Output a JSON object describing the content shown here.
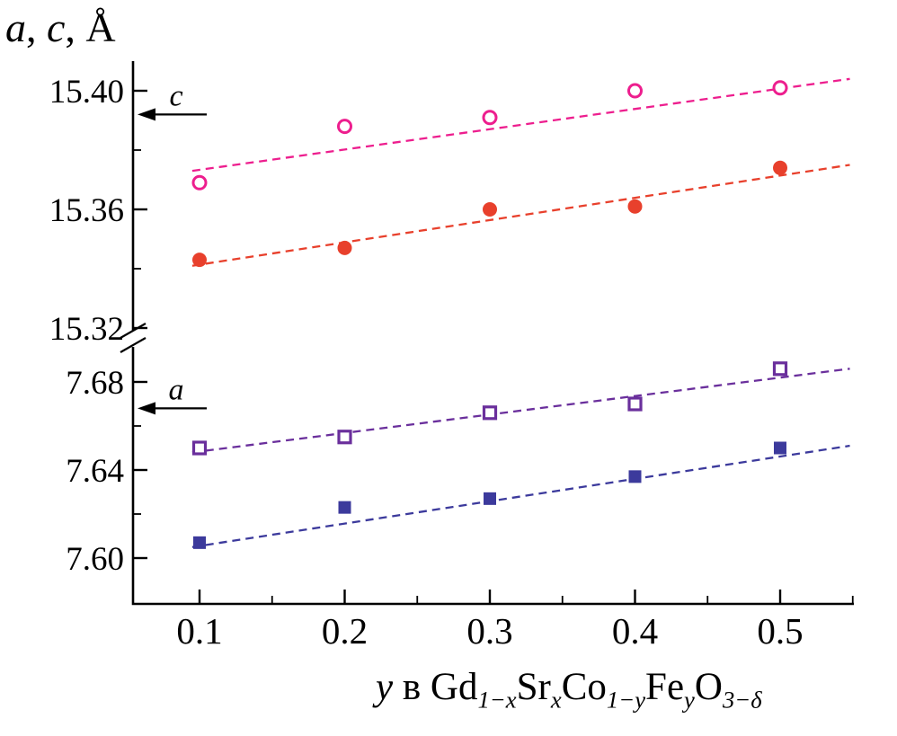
{
  "figure": {
    "title_parts": [
      {
        "t": "a",
        "i": true
      },
      {
        "t": ", "
      },
      {
        "t": "c",
        "i": true
      },
      {
        "t": ", Å"
      }
    ],
    "xlabel_parts": [
      {
        "t": "y",
        "i": true
      },
      {
        "t": " в "
      },
      {
        "t": "Gd"
      },
      {
        "t": "1−x",
        "sub": true,
        "i": true
      },
      {
        "t": "Sr"
      },
      {
        "t": "x",
        "sub": true,
        "i": true
      },
      {
        "t": "Co"
      },
      {
        "t": "1−y",
        "sub": true,
        "i": true
      },
      {
        "t": "Fe"
      },
      {
        "t": "y",
        "sub": true,
        "i": true
      },
      {
        "t": "O"
      },
      {
        "t": "3−δ",
        "sub": true,
        "i": true
      }
    ]
  },
  "chart_data": {
    "type": "scatter",
    "title": "a, c, Å",
    "xlabel": "y в Gd1−xSrxCo1−yFeyO3−δ",
    "grid": false,
    "legend": "none (arrow annotations c and a point to left axis)",
    "axes": {
      "x": {
        "range": [
          0.054,
          0.551
        ],
        "major_ticks": [
          0.1,
          0.2,
          0.3,
          0.4,
          0.5
        ],
        "tick_labels": [
          "0.1",
          "0.2",
          "0.3",
          "0.4",
          "0.5"
        ],
        "minor_ticks": [
          0.15,
          0.25,
          0.35,
          0.45,
          0.55
        ]
      },
      "y_broken": true,
      "y_upper": {
        "parameter": "c",
        "range": [
          15.32,
          15.41
        ],
        "major_ticks": [
          15.4,
          15.36,
          15.32
        ],
        "tick_labels": [
          "15.40",
          "15.36",
          "15.32"
        ],
        "minor_ticks": [
          15.38,
          15.34
        ]
      },
      "y_lower": {
        "parameter": "a",
        "range": [
          7.579,
          7.696
        ],
        "major_ticks": [
          7.68,
          7.64,
          7.6
        ],
        "tick_labels": [
          "7.68",
          "7.64",
          "7.60"
        ],
        "minor_ticks": [
          7.66,
          7.62
        ]
      }
    },
    "x": [
      0.1,
      0.2,
      0.3,
      0.4,
      0.5
    ],
    "series": [
      {
        "name": "c-open-circles",
        "axis": "c",
        "marker": "circle-open",
        "color": "#ed1e8e",
        "values": [
          15.369,
          15.388,
          15.391,
          15.4,
          15.401
        ],
        "fit": {
          "x1": 0.095,
          "v1": 15.373,
          "x2": 0.548,
          "v2": 15.404
        }
      },
      {
        "name": "c-filled-circles",
        "axis": "c",
        "marker": "circle-filled",
        "color": "#e8402c",
        "values": [
          15.343,
          15.347,
          15.36,
          15.361,
          15.374
        ],
        "fit": {
          "x1": 0.095,
          "v1": 15.341,
          "x2": 0.548,
          "v2": 15.375
        }
      },
      {
        "name": "a-open-squares",
        "axis": "a",
        "marker": "square-open",
        "color": "#6a2f9c",
        "values": [
          7.65,
          7.655,
          7.666,
          7.67,
          7.686
        ],
        "fit": {
          "x1": 0.095,
          "v1": 7.648,
          "x2": 0.548,
          "v2": 7.686
        }
      },
      {
        "name": "a-filled-squares",
        "axis": "a",
        "marker": "square-filled",
        "color": "#3c3a9c",
        "values": [
          7.607,
          7.623,
          7.627,
          7.637,
          7.65
        ],
        "fit": {
          "x1": 0.095,
          "v1": 7.605,
          "x2": 0.548,
          "v2": 7.651
        }
      }
    ],
    "annotations": [
      {
        "label": "c",
        "axis": "c",
        "v": 15.392
      },
      {
        "label": "a",
        "axis": "a",
        "v": 7.668
      }
    ]
  }
}
